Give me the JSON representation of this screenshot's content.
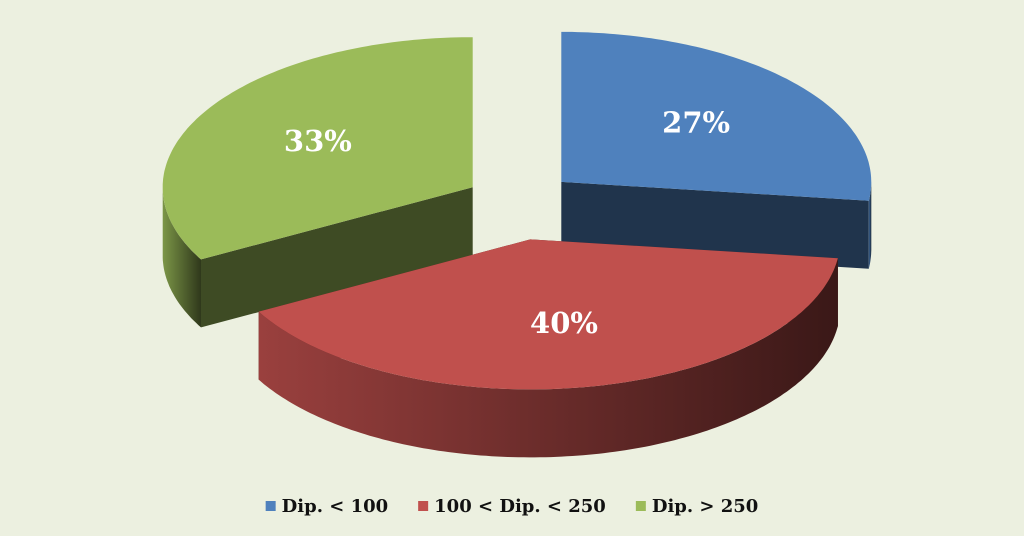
{
  "chart_data": {
    "type": "pie3d",
    "categories": [
      "Dip. < 100",
      "100 < Dip. < 250",
      "Dip. > 250"
    ],
    "values": [
      27,
      40,
      33
    ],
    "value_labels": [
      "27%",
      "40%",
      "33%"
    ],
    "colors": [
      "#4f81bd",
      "#c0504d",
      "#9bbb59"
    ],
    "legend": "bottom"
  }
}
